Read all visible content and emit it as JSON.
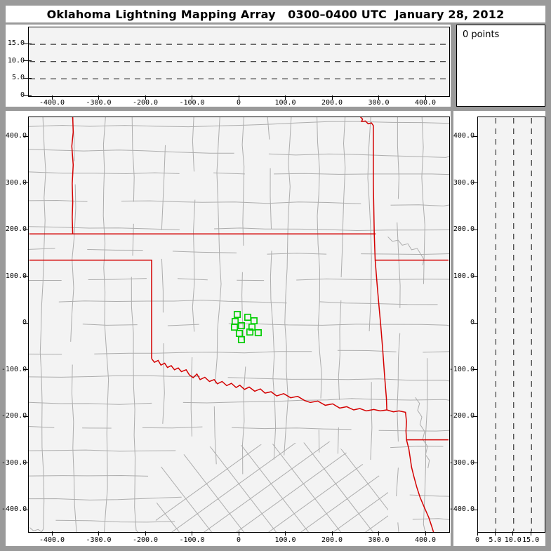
{
  "title": "Oklahoma Lightning Mapping Array   0300–0400 UTC  January 28, 2012",
  "points_box": {
    "label": "0 points"
  },
  "colors": {
    "frame_gray": "#9a9a9a",
    "panel_white": "#ffffff",
    "plot_background": "#f3f3f3",
    "axis_black": "#000000",
    "county_gray": "#adadad",
    "state_border_red": "#d40000",
    "station_green": "#00cc00"
  },
  "chart_data": [
    {
      "id": "top-altitude-vs-ew",
      "type": "scatter",
      "title": "",
      "point_count": 0,
      "points": [],
      "xlim": [
        -450,
        450
      ],
      "ylim": [
        0,
        19.5
      ],
      "x_ticks": [
        -400,
        -300,
        -200,
        -100,
        0,
        100,
        200,
        300,
        400
      ],
      "x_tick_labels": [
        "-400.0",
        "-300.0",
        "-200.0",
        "-100.0",
        "0",
        "100.0",
        "200.0",
        "300.0",
        "400.0"
      ],
      "y_ticks": [
        0,
        5,
        10,
        15
      ],
      "y_tick_labels": [
        "0",
        "5.0",
        "10.0",
        "15.0"
      ],
      "dashed_hlines": [
        5,
        10,
        15
      ],
      "grid": "dashed-horizontal",
      "legend": "none"
    },
    {
      "id": "plan-view-map",
      "type": "scatter",
      "title": "",
      "point_count": 0,
      "points": [],
      "xlim": [
        -450,
        450
      ],
      "ylim": [
        -450,
        450
      ],
      "x_ticks": [
        -400,
        -300,
        -200,
        -100,
        0,
        100,
        200,
        300,
        400
      ],
      "x_tick_labels": [
        "-400.0",
        "-300.0",
        "-200.0",
        "-100.0",
        "0",
        "100.0",
        "200.0",
        "300.0",
        "400.0"
      ],
      "y_ticks": [
        400,
        300,
        200,
        100,
        0,
        -100,
        -200,
        -300,
        -400
      ],
      "y_tick_labels": [
        "400.0",
        "300.0",
        "200.0",
        "100.0",
        "0",
        "-100.0",
        "-200.0",
        "-300.0",
        "-400.0"
      ],
      "marker": "open-green-square",
      "stations_km": [
        [
          -4.5,
          19.5
        ],
        [
          18,
          13.5
        ],
        [
          -9,
          4.5
        ],
        [
          31.5,
          6
        ],
        [
          -10.5,
          -7.5
        ],
        [
          4.5,
          -4.5
        ],
        [
          27,
          -7.5
        ],
        [
          22.5,
          -18
        ],
        [
          0,
          -21
        ],
        [
          40.5,
          -19.5
        ],
        [
          4.5,
          -34.5
        ]
      ]
    },
    {
      "id": "right-altitude-vs-ns",
      "type": "scatter",
      "title": "",
      "point_count": 0,
      "points": [],
      "xlim": [
        0,
        18.7
      ],
      "ylim": [
        -450,
        450
      ],
      "x_ticks": [
        0,
        5,
        10,
        15
      ],
      "x_tick_labels": [
        "0",
        "5.0",
        "10.0",
        "15.0"
      ],
      "y_ticks": [
        400,
        300,
        200,
        100,
        0,
        -100,
        -200,
        -300,
        -400
      ],
      "y_tick_labels": [
        "400.0",
        "300.0",
        "200.0",
        "100.0",
        "0",
        "-100.0",
        "-200.0",
        "-300.0",
        "-400.0"
      ],
      "dashed_vlines": [
        5,
        10,
        15
      ],
      "grid": "dashed-vertical"
    }
  ],
  "map": {
    "state_borders_km": [
      [
        [
          -357,
          444
        ],
        [
          -356,
          410
        ],
        [
          -359,
          380
        ],
        [
          -356,
          340
        ],
        [
          -358,
          300
        ],
        [
          -357,
          260
        ],
        [
          -358,
          228
        ],
        [
          -357,
          192
        ]
      ],
      [
        [
          -450,
          192
        ],
        [
          292,
          192
        ]
      ],
      [
        [
          258,
          444
        ],
        [
          264,
          438
        ],
        [
          262,
          433
        ],
        [
          270,
          434
        ],
        [
          276,
          428
        ],
        [
          283,
          430
        ],
        [
          287,
          424
        ],
        [
          287,
          300
        ],
        [
          289,
          192
        ],
        [
          291,
          136
        ],
        [
          295,
          85
        ],
        [
          299,
          40
        ],
        [
          303,
          -5
        ],
        [
          307,
          -55
        ],
        [
          311,
          -110
        ],
        [
          315,
          -160
        ],
        [
          316,
          -185
        ]
      ],
      [
        [
          291,
          136
        ],
        [
          448,
          136
        ]
      ],
      [
        [
          -450,
          136
        ],
        [
          -188,
          136
        ],
        [
          -188,
          -75
        ]
      ],
      [
        [
          -188,
          -75
        ],
        [
          -182,
          -83
        ],
        [
          -174,
          -79
        ],
        [
          -168,
          -89
        ],
        [
          -160,
          -85
        ],
        [
          -154,
          -94
        ],
        [
          -146,
          -90
        ],
        [
          -139,
          -99
        ],
        [
          -131,
          -95
        ],
        [
          -124,
          -103
        ],
        [
          -114,
          -99
        ],
        [
          -107,
          -110
        ],
        [
          -99,
          -116
        ],
        [
          -91,
          -108
        ],
        [
          -84,
          -120
        ],
        [
          -74,
          -115
        ],
        [
          -64,
          -124
        ],
        [
          -54,
          -120
        ],
        [
          -47,
          -129
        ],
        [
          -37,
          -124
        ],
        [
          -27,
          -133
        ],
        [
          -17,
          -128
        ],
        [
          -7,
          -137
        ],
        [
          1,
          -132
        ],
        [
          11,
          -141
        ],
        [
          21,
          -136
        ],
        [
          33,
          -145
        ],
        [
          45,
          -140
        ],
        [
          55,
          -149
        ],
        [
          68,
          -146
        ],
        [
          80,
          -155
        ],
        [
          95,
          -150
        ],
        [
          110,
          -159
        ],
        [
          125,
          -156
        ],
        [
          140,
          -165
        ],
        [
          152,
          -169
        ],
        [
          168,
          -166
        ],
        [
          184,
          -175
        ],
        [
          200,
          -172
        ],
        [
          215,
          -181
        ],
        [
          230,
          -178
        ],
        [
          245,
          -185
        ],
        [
          258,
          -182
        ],
        [
          272,
          -187
        ],
        [
          288,
          -184
        ],
        [
          302,
          -187
        ],
        [
          316,
          -185
        ]
      ],
      [
        [
          316,
          -185
        ],
        [
          330,
          -189
        ],
        [
          342,
          -187
        ],
        [
          356,
          -190
        ],
        [
          358,
          -210
        ],
        [
          357,
          -230
        ],
        [
          358,
          -249
        ],
        [
          448,
          -249
        ]
      ],
      [
        [
          358,
          -249
        ],
        [
          363,
          -268
        ],
        [
          366,
          -288
        ],
        [
          369,
          -308
        ],
        [
          374,
          -328
        ],
        [
          380,
          -350
        ],
        [
          387,
          -372
        ],
        [
          396,
          -393
        ],
        [
          406,
          -416
        ],
        [
          413,
          -437
        ],
        [
          417,
          -450
        ]
      ]
    ],
    "rivers_km": [
      [
        [
          318,
          186
        ],
        [
          328,
          176
        ],
        [
          340,
          179
        ],
        [
          349,
          168
        ],
        [
          361,
          171
        ],
        [
          369,
          158
        ],
        [
          381,
          161
        ],
        [
          389,
          148
        ],
        [
          395,
          138
        ],
        [
          393,
          125
        ]
      ],
      [
        [
          377,
          -158
        ],
        [
          386,
          -171
        ],
        [
          382,
          -186
        ],
        [
          391,
          -200
        ],
        [
          387,
          -216
        ],
        [
          397,
          -231
        ],
        [
          393,
          -248
        ],
        [
          403,
          -263
        ],
        [
          399,
          -281
        ],
        [
          407,
          -293
        ],
        [
          404,
          -310
        ]
      ],
      [
        [
          -449,
          -437
        ],
        [
          -441,
          -444
        ],
        [
          -431,
          -441
        ],
        [
          -424,
          -446
        ]
      ]
    ]
  }
}
